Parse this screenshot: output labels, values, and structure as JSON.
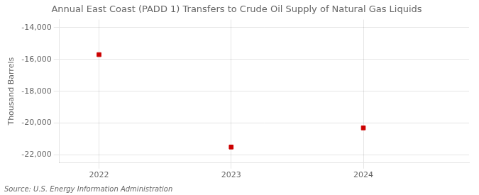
{
  "chart_data": {
    "type": "scatter",
    "title": "Annual East Coast (PADD 1) Transfers to Crude Oil Supply of Natural Gas Liquids",
    "ylabel": "Thousand Barrels",
    "source": "Source: U.S. Energy Information Administration",
    "x": [
      2022,
      2023,
      2024
    ],
    "values": [
      -15700,
      -21500,
      -20300
    ],
    "color": "#cc0000",
    "marker": "square",
    "xlim": [
      2021.7,
      2024.8
    ],
    "xticks": [
      2022,
      2023,
      2024
    ],
    "ylim": [
      -22500,
      -13500
    ],
    "yticks": [
      {
        "value": -14000,
        "label": "-14,000"
      },
      {
        "value": -16000,
        "label": "-16,000"
      },
      {
        "value": -18000,
        "label": "-18,000"
      },
      {
        "value": -20000,
        "label": "-20,000"
      },
      {
        "value": -22000,
        "label": "-22,000"
      }
    ],
    "grid": true
  }
}
